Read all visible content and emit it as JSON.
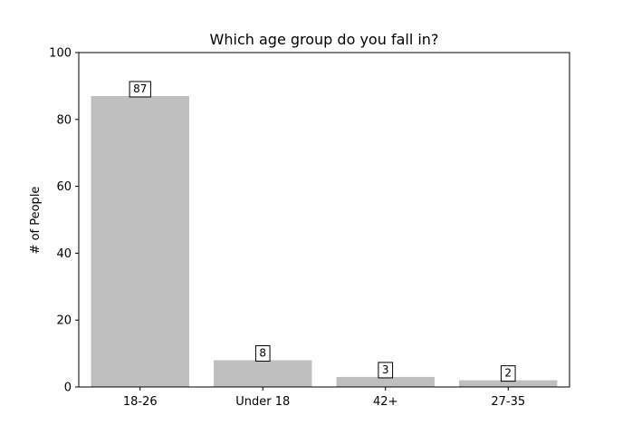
{
  "chart_data": {
    "type": "bar",
    "title": "Which age group do you fall in?",
    "xlabel": "",
    "ylabel": "# of People",
    "categories": [
      "18-26",
      "Under 18",
      "42+",
      "27-35"
    ],
    "values": [
      87,
      8,
      3,
      2
    ],
    "data_labels": [
      "87",
      "8",
      "3",
      "2"
    ],
    "ylim": [
      0,
      100
    ],
    "yticks": [
      0,
      20,
      40,
      60,
      80,
      100
    ],
    "ytick_labels": [
      "0",
      "20",
      "40",
      "60",
      "80",
      "100"
    ],
    "grid": false,
    "legend": "none",
    "bar_color": "#bfbfbf"
  }
}
